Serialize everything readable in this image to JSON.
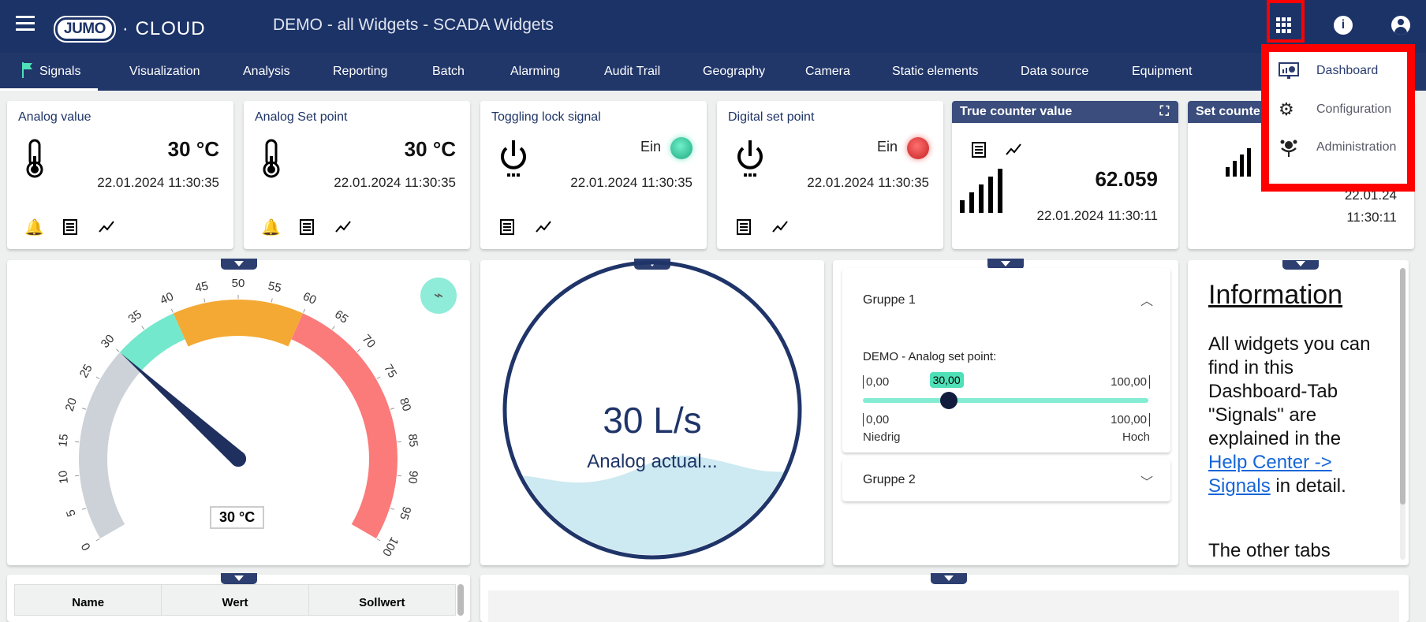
{
  "header": {
    "title": "DEMO - all Widgets  - SCADA Widgets",
    "logo_jumo": "JUMO",
    "logo_cloud": "· CLOUD",
    "info_icon": "i"
  },
  "nav": {
    "tabs": [
      {
        "label": "Signals",
        "active": true
      },
      {
        "label": "Visualization"
      },
      {
        "label": "Analysis"
      },
      {
        "label": "Reporting"
      },
      {
        "label": "Batch"
      },
      {
        "label": "Alarming"
      },
      {
        "label": "Audit Trail"
      },
      {
        "label": "Geography"
      },
      {
        "label": "Camera"
      },
      {
        "label": "Static elements"
      },
      {
        "label": "Data source"
      },
      {
        "label": "Equipment"
      }
    ]
  },
  "apps_menu": {
    "items": [
      {
        "label": "Dashboard",
        "icon": "dashboard-monitor-icon"
      },
      {
        "label": "Configuration",
        "icon": "gears-icon"
      },
      {
        "label": "Administration",
        "icon": "users-admin-icon"
      }
    ]
  },
  "cards": [
    {
      "title": "Analog value",
      "value": "30 °C",
      "date": "22.01.2024  11:30:35"
    },
    {
      "title": "Analog Set point",
      "value": "30 °C",
      "date": "22.01.2024  11:30:35"
    },
    {
      "title": "Toggling lock signal",
      "state": "Ein",
      "led": "#3ec9a0",
      "date": "22.01.2024  11:30:35"
    },
    {
      "title": "Digital set point",
      "state": "Ein",
      "led": "#e03a3a",
      "date": "22.01.2024  11:30:35"
    },
    {
      "title": "True counter value",
      "value": "62.059",
      "date": "22.01.2024  11:30:11"
    },
    {
      "title": "Set counte",
      "date_line1": "22.01.24",
      "date_line2": "11:30:11"
    }
  ],
  "gauge": {
    "value": 30,
    "min": 0,
    "max": 100,
    "unit": "°C",
    "readout": "30 °C",
    "ticks": [
      0,
      5,
      10,
      15,
      20,
      25,
      30,
      35,
      40,
      45,
      50,
      55,
      60,
      65,
      70,
      75,
      80,
      85,
      90,
      95,
      100
    ],
    "bands": [
      {
        "from": 0,
        "to": 30,
        "color": "#ccd2d8"
      },
      {
        "from": 30,
        "to": 40,
        "color": "#73e8cc"
      },
      {
        "from": 40,
        "to": 60,
        "color": "#f4a934"
      },
      {
        "from": 60,
        "to": 100,
        "color": "#fb7a7a"
      }
    ]
  },
  "tank": {
    "value": "30 L/s",
    "label": "Analog actual...",
    "fill_fraction": 0.3
  },
  "groups": {
    "g1": "Gruppe 1",
    "g2": "Gruppe 2",
    "slider": {
      "label": "DEMO - Analog set point:",
      "min": "0,00",
      "max": "100,00",
      "value": "30,00",
      "fraction": 0.3,
      "low_min": "0,00",
      "low_max": "100,00",
      "low_label": "Niedrig",
      "high_label": "Hoch"
    }
  },
  "info": {
    "heading": "Information",
    "text1": "All widgets you can find in this Dashboard-Tab \"Signals\" are explained in the ",
    "link": "Help Center -> Signals",
    "text2": " in detail.",
    "text3": "The other tabs"
  },
  "table": {
    "columns": [
      "Name",
      "Wert",
      "Sollwert"
    ]
  }
}
